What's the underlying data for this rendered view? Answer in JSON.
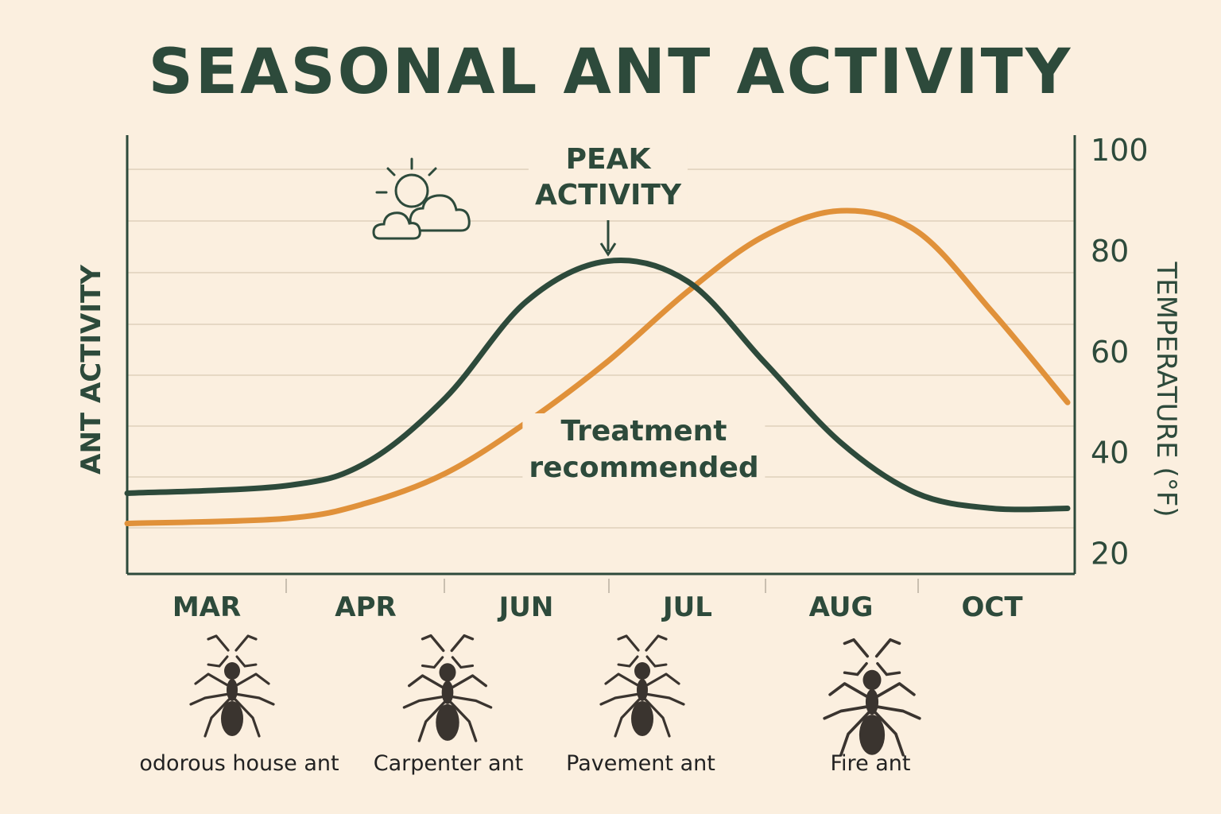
{
  "chart_data": {
    "type": "line",
    "title": "SEASONAL ANT ACTIVITY",
    "ylabel": "ANT ACTIVITY",
    "y2label": "TEMPERATURE (°F)",
    "x": [
      "MAR",
      "APR",
      "JUN",
      "JUL",
      "AUG",
      "OCT"
    ],
    "y2ticks": [
      20,
      40,
      60,
      80,
      100
    ],
    "y2lim": [
      16,
      103
    ],
    "grid": true,
    "series": [
      {
        "name": "",
        "axis": "left",
        "color": "#2d4a3b",
        "points": [
          [
            0,
            32
          ],
          [
            0.5,
            33.5
          ],
          [
            1,
            38
          ],
          [
            1.5,
            51
          ],
          [
            2,
            70
          ],
          [
            2.5,
            78
          ],
          [
            3,
            74
          ],
          [
            3.5,
            58
          ],
          [
            4,
            42
          ],
          [
            4.5,
            32
          ],
          [
            5,
            29
          ],
          [
            5.5,
            29
          ]
        ]
      },
      {
        "name": "",
        "axis": "right",
        "color": "#e0913a",
        "points": [
          [
            0,
            26
          ],
          [
            0.5,
            27
          ],
          [
            1,
            30
          ],
          [
            1.5,
            36
          ],
          [
            2,
            46
          ],
          [
            2.5,
            58
          ],
          [
            3,
            72
          ],
          [
            3.5,
            83
          ],
          [
            4,
            88
          ],
          [
            4.5,
            84
          ],
          [
            5,
            68
          ],
          [
            5.5,
            50
          ]
        ]
      }
    ],
    "annotations": [
      {
        "text": "PEAK ACTIVITY",
        "x": 2.5
      },
      {
        "text": "Treatment recommended",
        "x": 2.75
      }
    ]
  },
  "annotations": {
    "peak_line1": "PEAK",
    "peak_line2": "ACTIVITY",
    "treatment_line1": "Treatment",
    "treatment_line2": "recommended"
  },
  "weather_icon": "sun-behind-clouds-icon",
  "ant_species": [
    "odorous house ant",
    "Carpenter ant",
    "Pavement ant",
    "Fire ant"
  ]
}
